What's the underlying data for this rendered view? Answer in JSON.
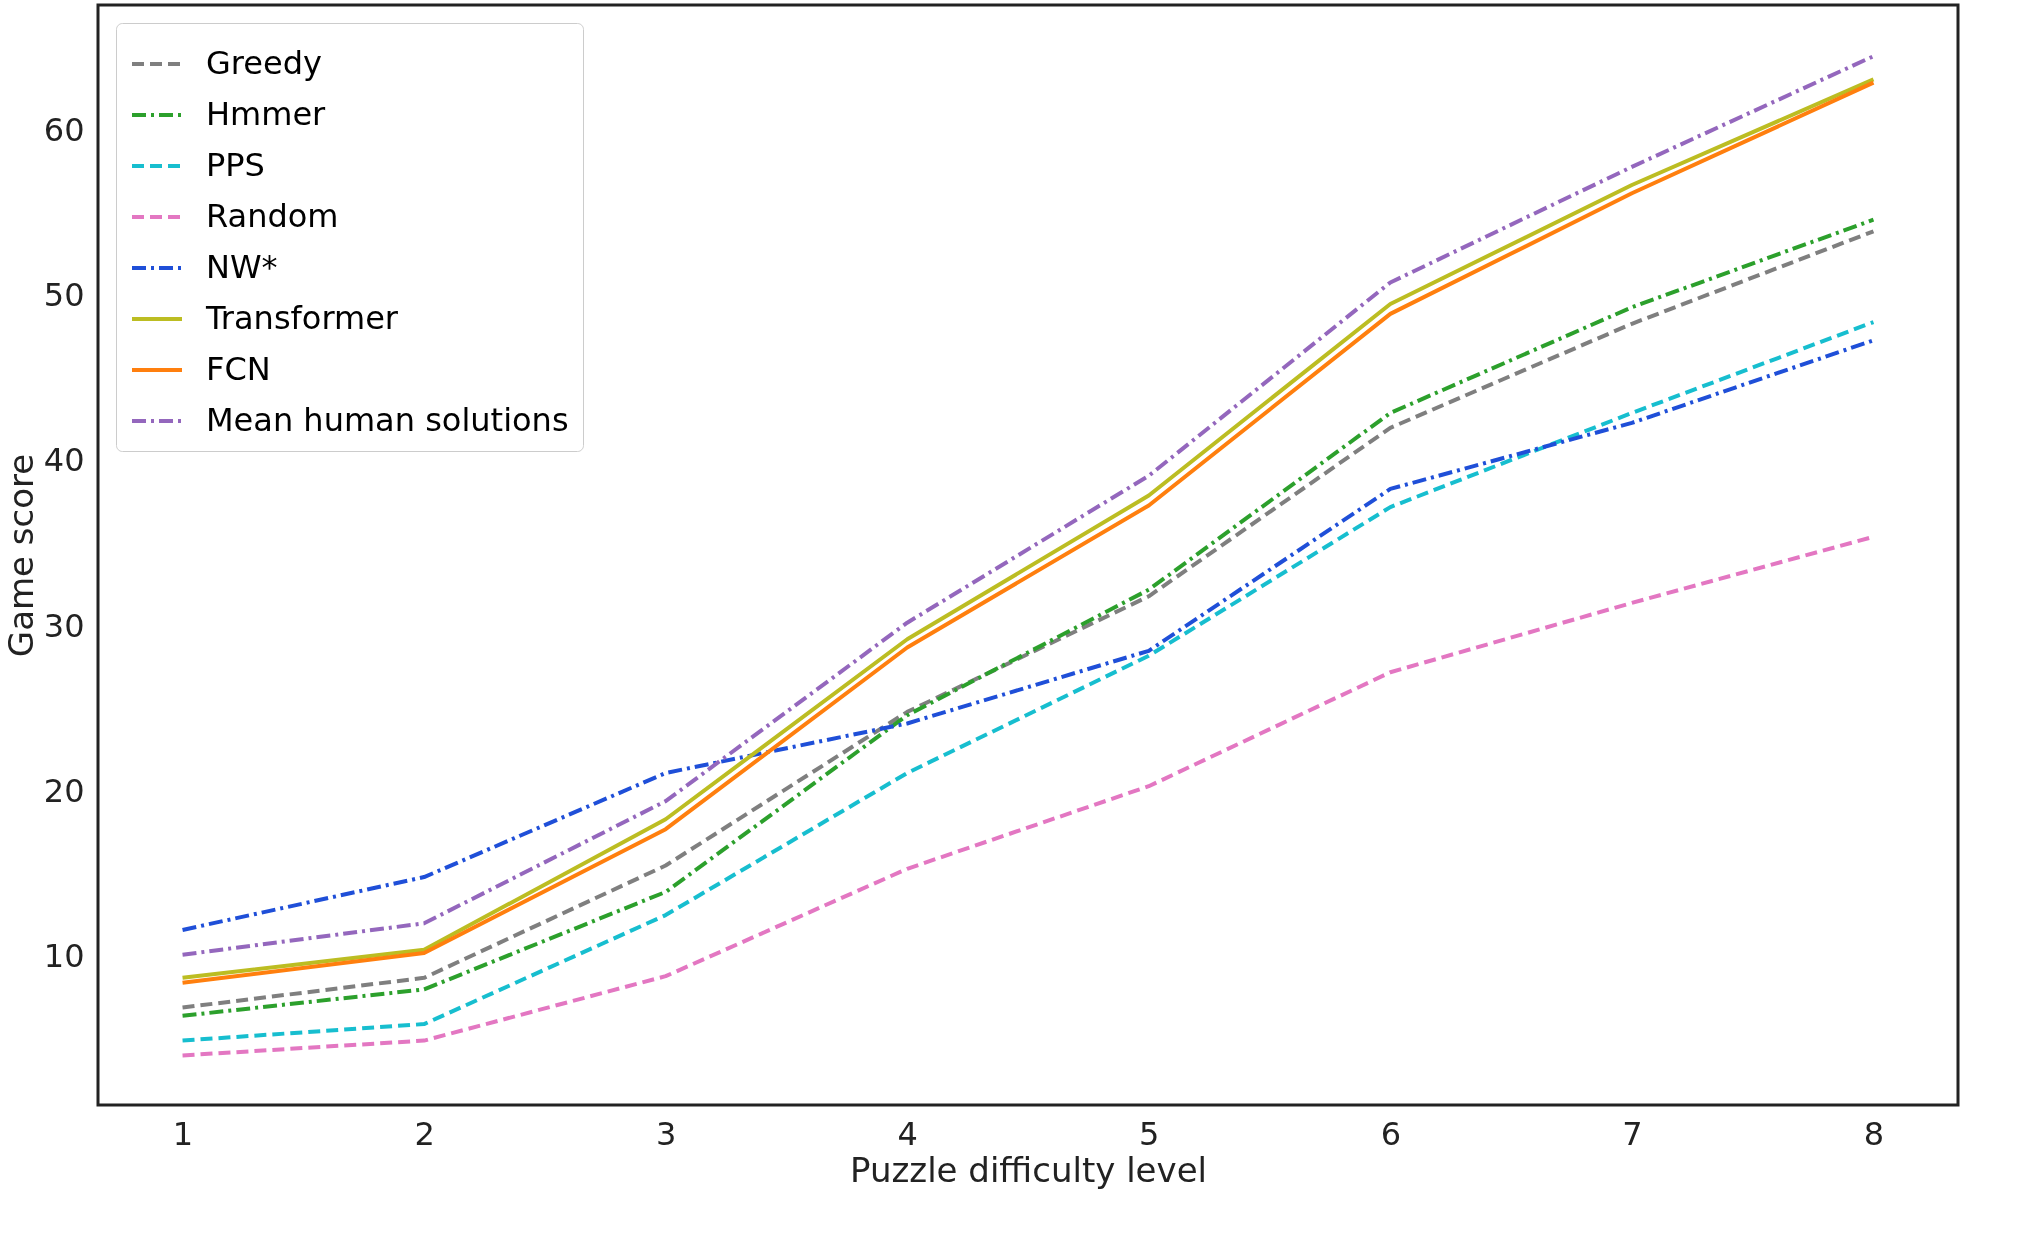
{
  "chart_data": {
    "type": "line",
    "xlabel": "Puzzle difficulty level",
    "ylabel": "Game score",
    "x": [
      1,
      2,
      3,
      4,
      5,
      6,
      7,
      8
    ],
    "xlim": [
      0.65,
      8.35
    ],
    "xticks": [
      1,
      2,
      3,
      4,
      5,
      6,
      7,
      8
    ],
    "ylim": [
      1,
      67.6
    ],
    "yticks": [
      10,
      20,
      30,
      40,
      50,
      60
    ],
    "grid": false,
    "legend": "top left",
    "series": [
      {
        "name": "Greedy",
        "color": "#7f7f7f",
        "line_style": "dashed",
        "values": [
          6.9,
          8.7,
          15.5,
          24.8,
          31.8,
          42.0,
          48.3,
          53.9
        ]
      },
      {
        "name": "Hmmer",
        "color": "#2ca02c",
        "line_style": "dashdot",
        "values": [
          6.4,
          8.0,
          13.9,
          24.6,
          32.2,
          42.9,
          49.3,
          54.6
        ]
      },
      {
        "name": "PPS",
        "color": "#17becf",
        "line_style": "dashed",
        "values": [
          4.9,
          5.9,
          12.5,
          21.1,
          28.2,
          37.2,
          42.9,
          48.4
        ]
      },
      {
        "name": "Random",
        "color": "#e377c2",
        "line_style": "dashed",
        "values": [
          4.0,
          4.9,
          8.8,
          15.3,
          20.3,
          27.2,
          31.4,
          35.4
        ]
      },
      {
        "name": "NW*",
        "color": "#1f4fd8",
        "line_style": "dashdot",
        "values": [
          11.6,
          14.8,
          21.1,
          24.1,
          28.5,
          38.3,
          42.3,
          47.3
        ]
      },
      {
        "name": "Transformer",
        "color": "#bcbd22",
        "line_style": "solid",
        "values": [
          8.7,
          10.4,
          18.3,
          29.2,
          37.9,
          49.5,
          56.7,
          63.1
        ]
      },
      {
        "name": "FCN",
        "color": "#ff7f0e",
        "line_style": "solid",
        "values": [
          8.4,
          10.2,
          17.7,
          28.7,
          37.3,
          48.9,
          56.2,
          62.9
        ]
      },
      {
        "name": "Mean human solutions",
        "color": "#9467bd",
        "line_style": "dashdot",
        "values": [
          10.1,
          12.0,
          19.4,
          30.2,
          39.1,
          50.8,
          57.8,
          64.5
        ]
      }
    ]
  }
}
